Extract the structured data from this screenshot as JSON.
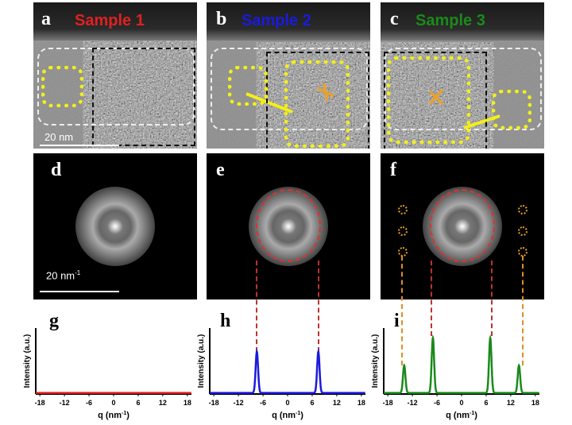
{
  "panels": [
    {
      "label": "a",
      "title": "Sample 1",
      "color": "#e02020"
    },
    {
      "label": "b",
      "title": "Sample 2",
      "color": "#1a1ae0"
    },
    {
      "label": "c",
      "title": "Sample 3",
      "color": "#1a8a1a"
    }
  ],
  "fft_labels": [
    "d",
    "e",
    "f"
  ],
  "plot_labels": [
    "g",
    "h",
    "i"
  ],
  "scale_bar_real": "20 nm",
  "scale_bar_reciprocal": "20 nm",
  "scale_bar_reciprocal_sup": "-1",
  "chart_data": [
    {
      "type": "line",
      "panel": "g",
      "xlabel": "q (nm",
      "xlabel_sup": "-1",
      "xlabel_end": ")",
      "ylabel": "Intensity (a.u.)",
      "xlim": [
        -19,
        19
      ],
      "ylim": [
        0,
        1.2
      ],
      "xticks": [
        -18,
        -12,
        -6,
        0,
        6,
        12,
        18
      ],
      "series": [
        {
          "color": "#e02020",
          "peaks": []
        }
      ]
    },
    {
      "type": "line",
      "panel": "h",
      "xlabel": "q (nm",
      "xlabel_sup": "-1",
      "xlabel_end": ")",
      "ylabel": "Intensity (a.u.)",
      "xlim": [
        -19,
        19
      ],
      "ylim": [
        0,
        1.2
      ],
      "xticks": [
        -18,
        -12,
        -6,
        0,
        6,
        12,
        18
      ],
      "series": [
        {
          "color": "#1a1ae0",
          "peaks": [
            {
              "q": -7.5,
              "height": 0.75
            },
            {
              "q": 7.5,
              "height": 0.75
            }
          ]
        }
      ]
    },
    {
      "type": "line",
      "panel": "i",
      "xlabel": "q (nm",
      "xlabel_sup": "-1",
      "xlabel_end": ")",
      "ylabel": "Intensity (a.u.)",
      "xlim": [
        -19,
        19
      ],
      "ylim": [
        0,
        1.2
      ],
      "xticks": [
        -18,
        -12,
        -6,
        0,
        6,
        12,
        18
      ],
      "series": [
        {
          "color": "#1a8a1a",
          "peaks": [
            {
              "q": -14,
              "height": 0.5
            },
            {
              "q": -7,
              "height": 1.0
            },
            {
              "q": 7,
              "height": 1.0
            },
            {
              "q": 14,
              "height": 0.5
            }
          ]
        }
      ]
    }
  ]
}
